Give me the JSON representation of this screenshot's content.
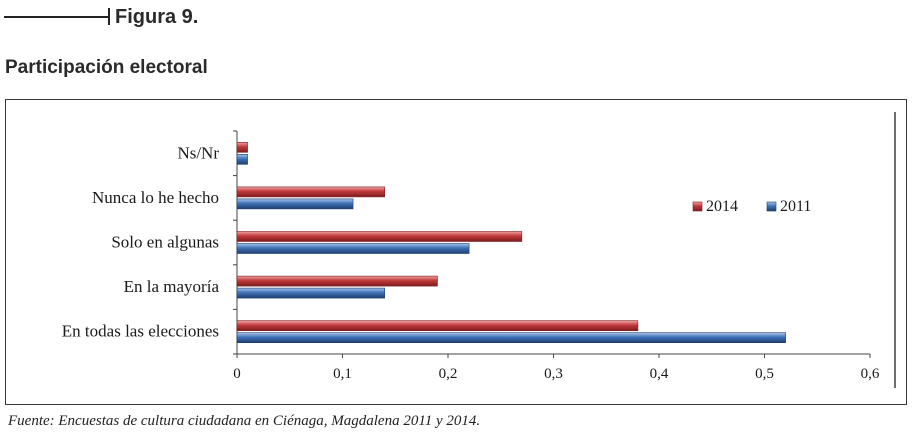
{
  "header": {
    "figure_label": "Figura 9.",
    "section_title": "Participación electoral"
  },
  "source_note": "Fuente: Encuestas de cultura ciudadana en Ciénaga, Magdalena 2011 y 2014.",
  "colors": {
    "series_2014": "#c0393b",
    "series_2011": "#3f72b8"
  },
  "chart_data": {
    "type": "bar",
    "orientation": "horizontal",
    "categories": [
      "Ns/Nr",
      "Nunca lo he hecho",
      "Solo en algunas",
      "En la mayoría",
      "En todas las elecciones"
    ],
    "series": [
      {
        "name": "2014",
        "values": [
          0.01,
          0.14,
          0.27,
          0.19,
          0.38
        ]
      },
      {
        "name": "2011",
        "values": [
          0.01,
          0.11,
          0.22,
          0.14,
          0.52
        ]
      }
    ],
    "xlim": [
      0,
      0.6
    ],
    "x_ticks": [
      "0",
      "0,1",
      "0,2",
      "0,3",
      "0,4",
      "0,5",
      "0,6"
    ],
    "legend_position": "right",
    "grid": false
  }
}
